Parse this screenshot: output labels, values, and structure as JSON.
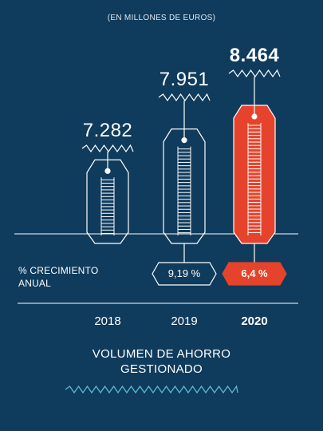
{
  "unit_note": "(EN MILLONES DE EUROS)",
  "growth_label_line1": "% CRECIMIENTO",
  "growth_label_line2": "ANUAL",
  "footer_line1": "VOLUMEN DE AHORRO",
  "footer_line2": "GESTIONADO",
  "colors": {
    "background": "#0f3b5c",
    "highlight": "#e5432c",
    "line": "#ffffff"
  },
  "chart_data": {
    "type": "bar",
    "categories": [
      "2018",
      "2019",
      "2020"
    ],
    "values": [
      7282,
      7951,
      8464
    ],
    "value_labels": [
      "7.282",
      "7.951",
      "8.464"
    ],
    "growth_labels": [
      null,
      "9,19 %",
      "6,4 %"
    ],
    "highlight_index": 2,
    "title": "VOLUMEN DE AHORRO GESTIONADO",
    "subtitle": "(EN MILLONES DE EUROS)",
    "xlabel": "",
    "ylabel": ""
  }
}
